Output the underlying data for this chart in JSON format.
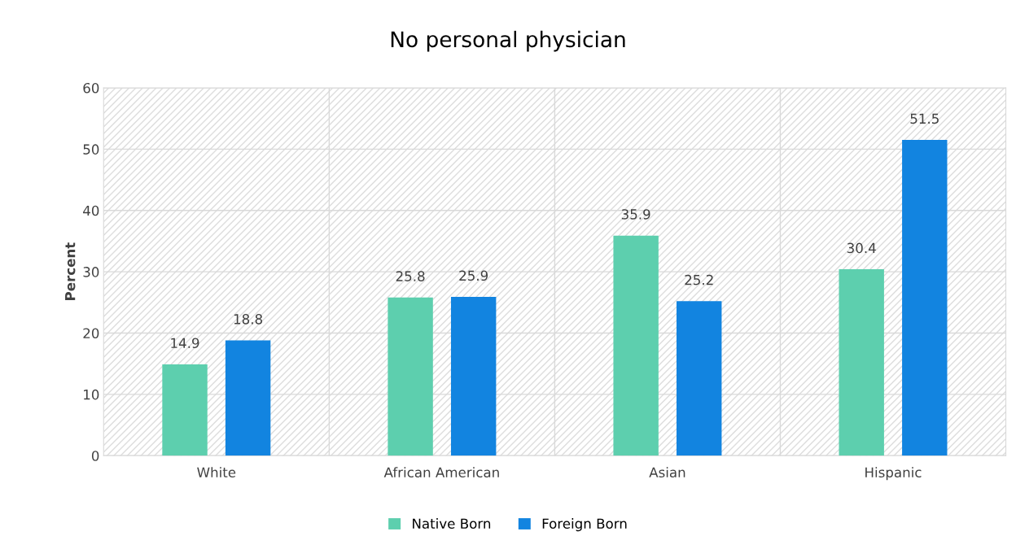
{
  "chart_data": {
    "type": "bar",
    "title": "No personal physician",
    "ylabel": "Percent",
    "categories": [
      "White",
      "African American",
      "Asian",
      "Hispanic"
    ],
    "series": [
      {
        "name": "Native Born",
        "color": "#5dcfae",
        "values": [
          14.9,
          25.8,
          35.9,
          30.4
        ]
      },
      {
        "name": "Foreign Born",
        "color": "#1284e0",
        "values": [
          18.8,
          25.9,
          25.2,
          51.5
        ]
      }
    ],
    "ylim": [
      0,
      60
    ],
    "yticks": [
      0,
      10,
      20,
      30,
      40,
      50,
      60
    ],
    "grid": true,
    "legend": "bottom",
    "data_labels": true
  }
}
